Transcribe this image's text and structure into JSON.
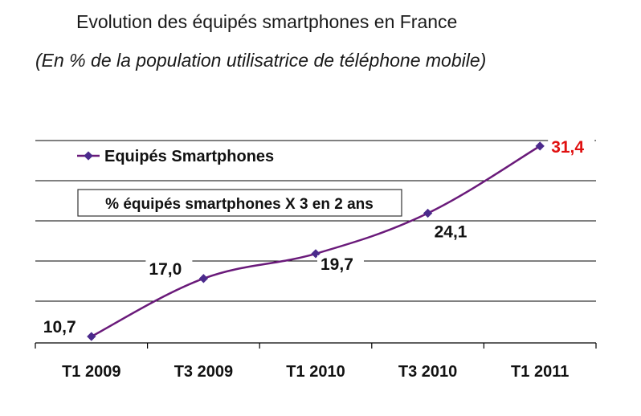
{
  "title": "Evolution des équipés smartphones en France",
  "subtitle": "(En % de la population utilisatrice de téléphone mobile)",
  "annotation": "% équipés smartphones X 3 en 2 ans",
  "colors": {
    "line": "#6a1a7a",
    "marker": "#4b2a8c",
    "label": "#111111",
    "highlight": "#e01010",
    "grid": "#000000"
  },
  "chart_data": {
    "type": "line",
    "title": "Evolution des équipés smartphones en France",
    "subtitle": "(En % de la population utilisatrice de téléphone mobile)",
    "categories": [
      "T1 2009",
      "T3 2009",
      "T1 2010",
      "T3 2010",
      "T1 2011"
    ],
    "series": [
      {
        "name": "Equipés Smartphones",
        "values": [
          10.7,
          17.0,
          19.7,
          24.1,
          31.4
        ],
        "labels": [
          "10,7",
          "17,0",
          "19,7",
          "24,1",
          "31,4"
        ]
      }
    ],
    "ylim": [
      10,
      32
    ],
    "grid": true,
    "legend_position": "top-left",
    "highlight_last": true
  }
}
